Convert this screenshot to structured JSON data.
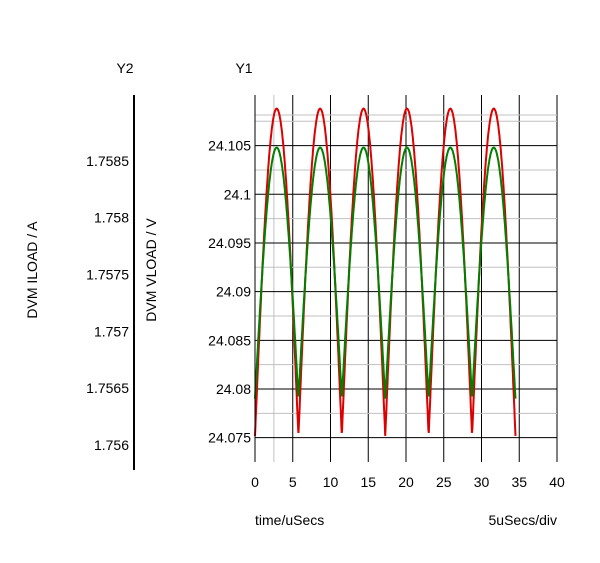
{
  "chart_data": {
    "type": "line",
    "y2_header": "Y2",
    "y1_header": "Y1",
    "xlabel": "time/uSecs",
    "x_scale_label": "5uSecs/div",
    "y1_label": "DVM VLOAD / V",
    "y2_label": "DVM ILOAD / A",
    "xlim": [
      0,
      40
    ],
    "x_ticks": [
      "0",
      "5",
      "10",
      "15",
      "20",
      "25",
      "30",
      "35",
      "40"
    ],
    "y1_lim": [
      24.0725,
      24.1102
    ],
    "y1_ticks": [
      "24.075",
      "24.08",
      "24.085",
      "24.09",
      "24.095",
      "24.1",
      "24.105"
    ],
    "y2_lim": [
      1.75585,
      1.75908
    ],
    "y2_ticks": [
      "1.756",
      "1.7565",
      "1.757",
      "1.7575",
      "1.758",
      "1.7585"
    ],
    "grid": true,
    "series": [
      {
        "axis": "y2",
        "color": "#dd0000",
        "period_us": 5.75,
        "x_start": 0,
        "x_end": 34.5,
        "min": 1.75608,
        "max": 1.75896
      },
      {
        "axis": "y1",
        "color": "#008000",
        "period_us": 5.75,
        "x_start": 0,
        "x_end": 34.5,
        "min": 24.079,
        "max": 24.1048
      }
    ]
  }
}
